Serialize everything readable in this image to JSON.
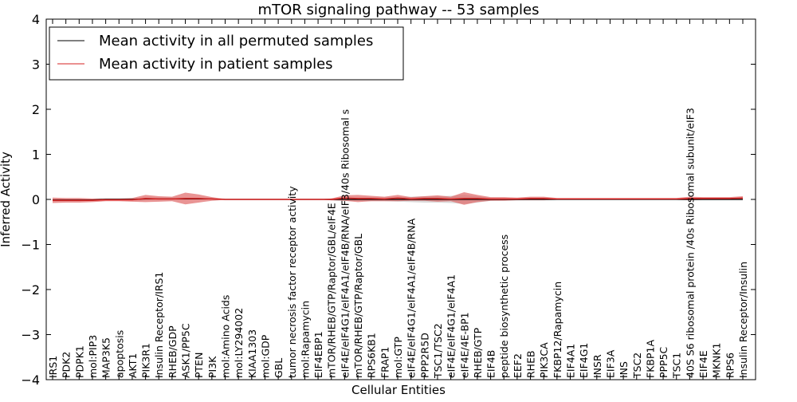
{
  "chart_data": {
    "type": "line",
    "title": "mTOR signaling pathway -- 53 samples",
    "xlabel": "Cellular Entities",
    "ylabel": "Inferred Activity",
    "ylim": [
      -4,
      4
    ],
    "yticks": [
      "−4",
      "−3",
      "−2",
      "−1",
      "0",
      "1",
      "2",
      "3",
      "4"
    ],
    "legend_position": "top-left",
    "colors": {
      "permuted": "#000000",
      "patient": "#d62020",
      "patient_band": "#e06666",
      "permuted_band": "#aaaaaa",
      "axes": "#000000"
    },
    "categories": [
      "IRS1",
      "PDK2",
      "PDPK1",
      "mol:PIP3",
      "MAP3K5",
      "apoptosis",
      "AKT1",
      "PIK3R1",
      "Insulin Receptor/IRS1",
      "RHEB/GDP",
      "ASK1/PP5C",
      "PTEN",
      "PI3K",
      "mol:Amino Acids",
      "mol:LY294002",
      "KIAA1303",
      "mol:GDP",
      "GBL",
      "tumor necrosis factor receptor activity",
      "mol:Rapamycin",
      "EIF4EBP1",
      "mTOR/RHEB/GTP/Raptor/GBL/eIF4E",
      "eIF4E/eIF4G1/eIF4A1/eIF4B/RNA/eIF3/40s Ribosomal s",
      "mTOR/RHEB/GTP/Raptor/GBL",
      "RPS6KB1",
      "FRAP1",
      "mol:GTP",
      "eIF4E/eIF4G1/eIF4A1/eIF4B/RNA",
      "PPP2R5D",
      "TSC1/TSC2",
      "eIF4E/eIF4G1/eIF4A1",
      "eIF4E/4E-BP1",
      "RHEB/GTP",
      "EIF4B",
      "peptide biosynthetic process",
      "EEF2",
      "RHEB",
      "PIK3CA",
      "FKBP12/Rapamycin",
      "EIF4A1",
      "EIF4G1",
      "INSR",
      "EIF3A",
      "INS",
      "TSC2",
      "FKBP1A",
      "PPP5C",
      "TSC1",
      "40S S6 ribosomal protein /40s Ribosomal subunit/eIF3",
      "EIF4E",
      "MKNK1",
      "RPS6",
      "Insulin Receptor/Insulin"
    ],
    "series": [
      {
        "name": "Mean activity in all permuted samples",
        "color": "#000000",
        "values": [
          -0.01,
          -0.01,
          -0.01,
          -0.01,
          0,
          0,
          0,
          0.01,
          0.01,
          0.01,
          0.01,
          0.01,
          0.01,
          0,
          0,
          0,
          0,
          0,
          0,
          0,
          0,
          0,
          0,
          0,
          0,
          0,
          0,
          0,
          0,
          0,
          0,
          0,
          0,
          0,
          0,
          0,
          0,
          0,
          0,
          0,
          0,
          0,
          0,
          0,
          0,
          0,
          0,
          0,
          0,
          0,
          0,
          0,
          0
        ],
        "band": [
          0.03,
          0.03,
          0.03,
          0.02,
          0.02,
          0.02,
          0.02,
          0.03,
          0.03,
          0.03,
          0.03,
          0.02,
          0.02,
          0,
          0,
          0,
          0,
          0,
          0,
          0,
          0,
          0.02,
          0.03,
          0.03,
          0.04,
          0.04,
          0.05,
          0.06,
          0.07,
          0.07,
          0.08,
          0.1,
          0.07,
          0.03,
          0.02,
          0.02,
          0.01,
          0.01,
          0.01,
          0.01,
          0.01,
          0.01,
          0.01,
          0.01,
          0.01,
          0.01,
          0.01,
          0.01,
          0.02,
          0.02,
          0.02,
          0.02,
          0.02
        ]
      },
      {
        "name": "Mean activity in patient samples",
        "color": "#d62020",
        "values": [
          -0.02,
          -0.02,
          -0.02,
          -0.02,
          -0.01,
          -0.01,
          -0.01,
          0.02,
          0.01,
          0.01,
          0.02,
          0.02,
          0.01,
          0,
          0,
          0,
          0,
          0,
          0,
          0,
          0,
          0,
          0.03,
          0.02,
          0.02,
          0.01,
          0.03,
          0.01,
          0.02,
          0.02,
          0.01,
          0.02,
          0.02,
          0.01,
          0.01,
          0.01,
          0.02,
          0.02,
          0.01,
          0.01,
          0.01,
          0.01,
          0.01,
          0.01,
          0.01,
          0.01,
          0.01,
          0.01,
          0.02,
          0.02,
          0.02,
          0.02,
          0.03
        ],
        "band": [
          0.06,
          0.05,
          0.05,
          0.04,
          0.03,
          0.03,
          0.04,
          0.08,
          0.06,
          0.05,
          0.13,
          0.09,
          0.04,
          0.01,
          0,
          0,
          0,
          0,
          0,
          0,
          0,
          0.02,
          0.06,
          0.08,
          0.06,
          0.05,
          0.07,
          0.04,
          0.05,
          0.07,
          0.05,
          0.14,
          0.08,
          0.04,
          0.04,
          0.03,
          0.04,
          0.04,
          0.02,
          0.02,
          0.02,
          0.02,
          0.02,
          0.02,
          0.02,
          0.02,
          0.02,
          0.02,
          0.04,
          0.03,
          0.03,
          0.03,
          0.04
        ]
      }
    ]
  }
}
